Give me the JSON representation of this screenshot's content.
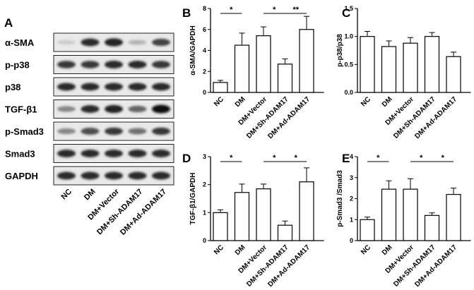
{
  "blot": {
    "panel_letter": "A",
    "proteins": [
      "α-SMA",
      "p-p38",
      "p38",
      "TGF-β1",
      "p-Smad3",
      "Smad3",
      "GAPDH"
    ],
    "band_intensity": [
      [
        0.15,
        0.85,
        0.9,
        0.25,
        0.75
      ],
      [
        0.8,
        0.8,
        0.85,
        0.85,
        0.8
      ],
      [
        0.85,
        0.85,
        0.85,
        0.85,
        0.85
      ],
      [
        0.45,
        0.85,
        0.9,
        0.6,
        1.0
      ],
      [
        0.45,
        0.7,
        0.8,
        0.55,
        0.8
      ],
      [
        0.85,
        0.85,
        0.85,
        0.85,
        0.85
      ],
      [
        0.85,
        0.85,
        0.85,
        0.85,
        0.85
      ]
    ],
    "lanes": [
      "NC",
      "DM",
      "DM+Vector",
      "DM+Sh-ADAM17",
      "DM+Ad-ADAM17"
    ]
  },
  "chart_data": [
    {
      "panel": "B",
      "type": "bar",
      "categories": [
        "NC",
        "DM",
        "DM+Vector",
        "DM+Sh-ADAM17",
        "DM+Ad-ADAM17"
      ],
      "values": [
        0.95,
        4.5,
        5.4,
        2.7,
        6.0
      ],
      "errors": [
        0.2,
        1.15,
        0.85,
        0.5,
        1.25
      ],
      "ylabel": "α-SMA/GAPDH",
      "ylim": [
        0,
        8
      ],
      "yticks": [
        0,
        2,
        4,
        6,
        8
      ],
      "sig": [
        {
          "bracket": [
            0,
            1
          ],
          "label": "*"
        },
        {
          "bracket": [
            2,
            3
          ],
          "label": "*"
        },
        {
          "bracket": [
            3,
            4
          ],
          "label": "**"
        }
      ]
    },
    {
      "panel": "C",
      "type": "bar",
      "categories": [
        "NC",
        "DM",
        "DM+Vector",
        "DM+Sh-ADAM17",
        "DM+Ad-ADAM17"
      ],
      "values": [
        1.0,
        0.82,
        0.88,
        1.0,
        0.64
      ],
      "errors": [
        0.09,
        0.1,
        0.1,
        0.07,
        0.08
      ],
      "ylabel": "p-p38/p38",
      "ylim": [
        0,
        1.5
      ],
      "yticks": [
        0.0,
        0.5,
        1.0,
        1.5
      ],
      "sig": []
    },
    {
      "panel": "D",
      "type": "bar",
      "categories": [
        "NC",
        "DM",
        "DM+Vector",
        "DM+Sh-ADAM17",
        "DM+Ad-ADAM17"
      ],
      "values": [
        1.0,
        1.72,
        1.85,
        0.55,
        2.1
      ],
      "errors": [
        0.1,
        0.3,
        0.17,
        0.15,
        0.5
      ],
      "ylabel": "TGF-β1/GAPDH",
      "ylim": [
        0,
        3
      ],
      "yticks": [
        0,
        1,
        2,
        3
      ],
      "sig": [
        {
          "bracket": [
            0,
            1
          ],
          "label": "*"
        },
        {
          "bracket": [
            2,
            3
          ],
          "label": "*"
        },
        {
          "bracket": [
            3,
            4
          ],
          "label": "*"
        }
      ]
    },
    {
      "panel": "E",
      "type": "bar",
      "categories": [
        "NC",
        "DM",
        "DM+Vector",
        "DM+Sh-ADAM17",
        "DM+Ad-ADAM17"
      ],
      "values": [
        1.0,
        2.45,
        2.45,
        1.2,
        2.2
      ],
      "errors": [
        0.12,
        0.4,
        0.5,
        0.12,
        0.3
      ],
      "ylabel": "p-Smad3 /Smad3",
      "ylim": [
        0,
        4
      ],
      "yticks": [
        0,
        1,
        2,
        3,
        4
      ],
      "sig": [
        {
          "bracket": [
            0,
            1
          ],
          "label": "*"
        },
        {
          "bracket": [
            2,
            3
          ],
          "label": "*"
        },
        {
          "bracket": [
            3,
            4
          ],
          "label": "*"
        }
      ]
    }
  ]
}
